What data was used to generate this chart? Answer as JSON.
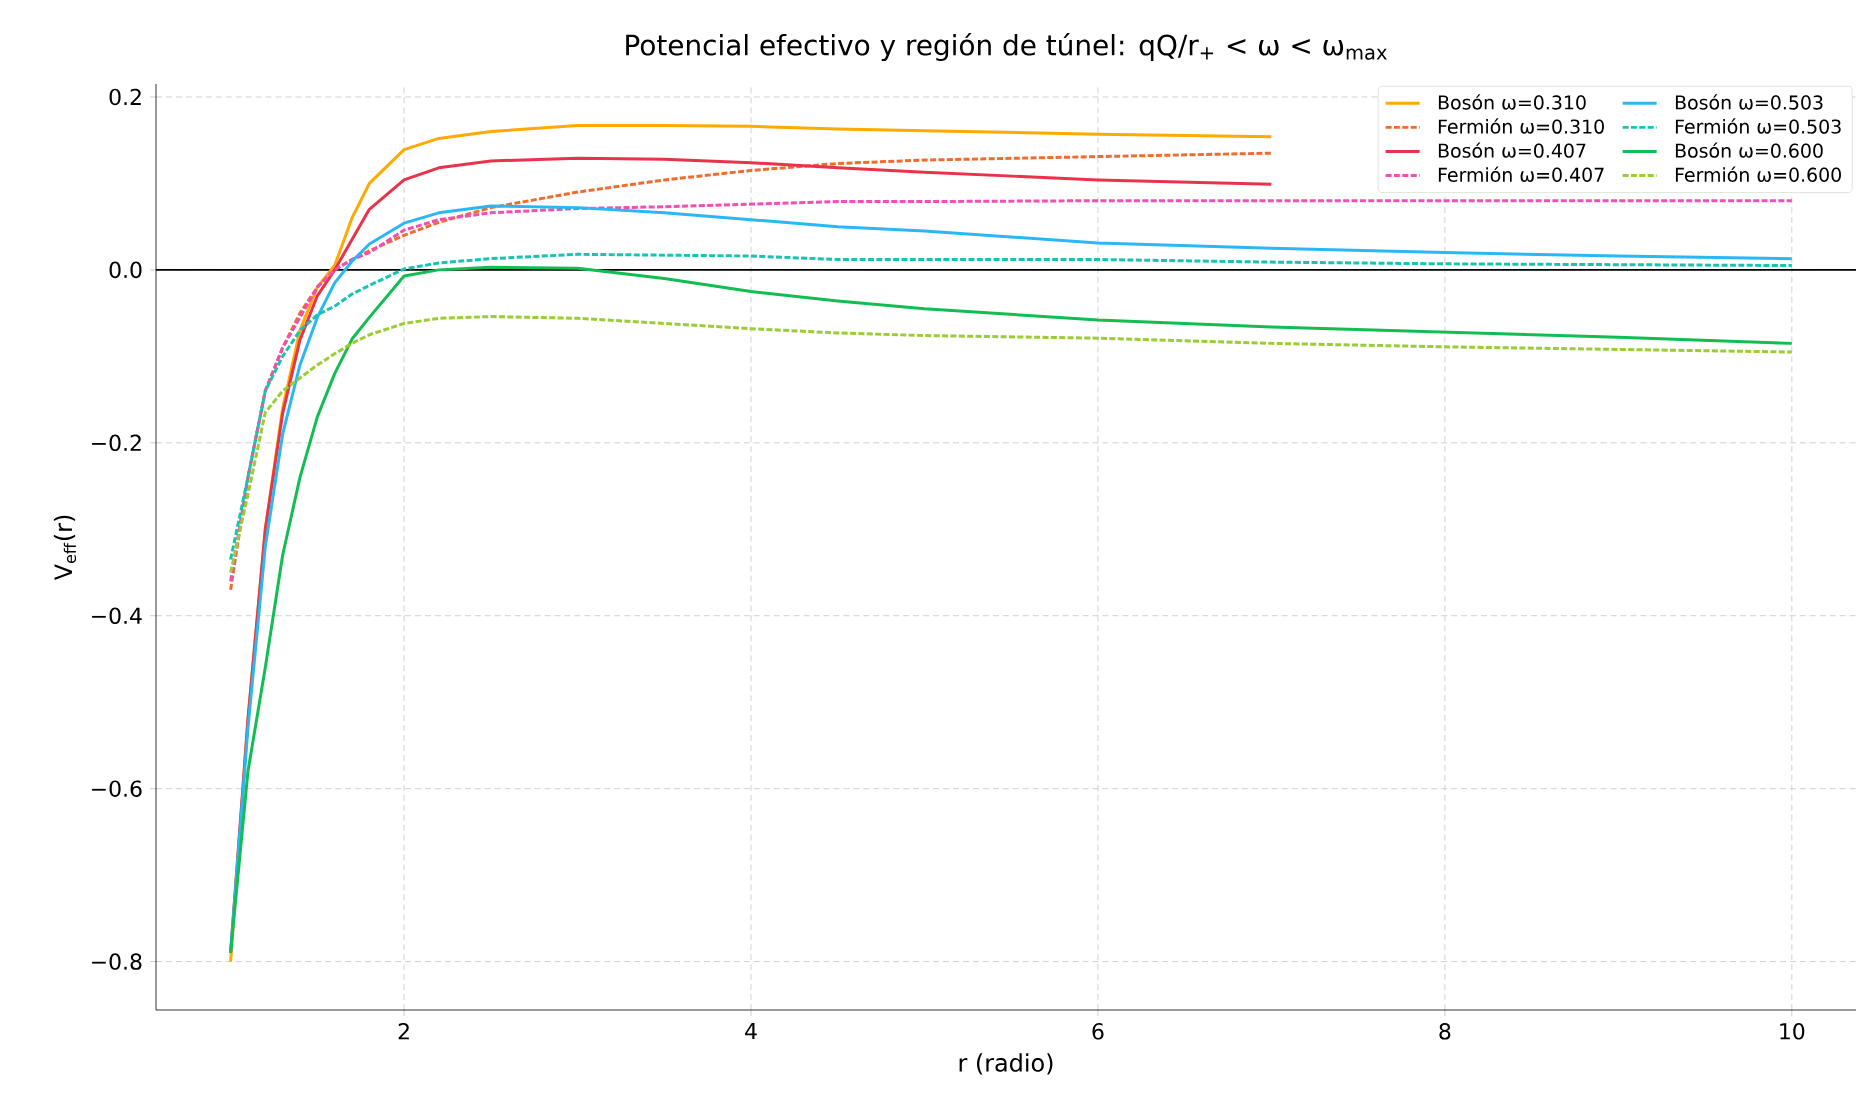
{
  "chart_data": {
    "type": "line",
    "title": "Potencial efectivo y región de túnel: qQ/r$_{+}$ < ω < ω$_{max}$",
    "xlabel": "r (radio)",
    "ylabel": "V$_{eff}$(r)",
    "x": [
      1,
      1.1,
      1.2,
      1.3,
      1.4,
      1.5,
      1.6,
      1.7,
      1.8,
      2,
      2.2,
      2.5,
      3,
      3.5,
      4,
      4.5,
      5,
      6,
      7,
      8,
      9,
      10
    ],
    "series": [
      {
        "name": "Bosón ω=0.310",
        "color": "#ffaa00",
        "line_style": "solid",
        "values": [
          -0.8,
          -0.52,
          -0.3,
          -0.16,
          -0.07,
          -0.02,
          0.005,
          0.06,
          0.1,
          0.139,
          0.152,
          0.16,
          0.167,
          0.167,
          0.166,
          0.163,
          0.161,
          0.157,
          0.154,
          null,
          null,
          null
        ]
      },
      {
        "name": "Fermión ω=0.310",
        "color": "#f26b2e",
        "line_style": "dashed",
        "values": [
          -0.37,
          -0.24,
          -0.14,
          -0.09,
          -0.05,
          -0.02,
          0.0,
          0.012,
          0.022,
          0.04,
          0.055,
          0.072,
          0.09,
          0.104,
          0.115,
          0.123,
          0.127,
          0.131,
          0.135,
          null,
          null,
          null
        ]
      },
      {
        "name": "Bosón ω=0.407",
        "color": "#e8334a",
        "line_style": "solid",
        "values": [
          -0.79,
          -0.52,
          -0.3,
          -0.166,
          -0.081,
          -0.03,
          0.0,
          0.035,
          0.07,
          0.104,
          0.118,
          0.126,
          0.129,
          0.128,
          0.124,
          0.118,
          0.113,
          0.104,
          0.099,
          null,
          null,
          null
        ]
      },
      {
        "name": "Fermión ω=0.407",
        "color": "#f04fb5",
        "line_style": "dashed",
        "values": [
          -0.36,
          -0.24,
          -0.14,
          -0.09,
          -0.055,
          -0.02,
          0.0,
          0.012,
          0.02,
          0.046,
          0.058,
          0.066,
          0.071,
          0.073,
          0.076,
          0.079,
          0.079,
          0.08,
          0.08,
          0.08,
          0.08,
          0.08
        ]
      },
      {
        "name": "Bosón ω=0.503",
        "color": "#2ab7f5",
        "line_style": "solid",
        "values": [
          -0.79,
          -0.53,
          -0.32,
          -0.19,
          -0.11,
          -0.055,
          -0.015,
          0.01,
          0.03,
          0.054,
          0.066,
          0.074,
          0.072,
          0.066,
          0.058,
          0.05,
          0.045,
          0.031,
          0.025,
          0.02,
          0.016,
          0.013
        ]
      },
      {
        "name": "Fermión ω=0.503",
        "color": "#17c3b2",
        "line_style": "dashed",
        "values": [
          -0.335,
          -0.24,
          -0.14,
          -0.1,
          -0.07,
          -0.052,
          -0.042,
          -0.028,
          -0.018,
          0.001,
          0.008,
          0.013,
          0.018,
          0.017,
          0.016,
          0.012,
          0.012,
          0.012,
          0.009,
          0.007,
          0.006,
          0.005
        ]
      },
      {
        "name": "Bosón ω=0.600",
        "color": "#12bd52",
        "line_style": "solid",
        "values": [
          -0.79,
          -0.58,
          -0.46,
          -0.33,
          -0.24,
          -0.17,
          -0.12,
          -0.08,
          -0.055,
          -0.007,
          0.0,
          0.003,
          0.002,
          -0.01,
          -0.025,
          -0.036,
          -0.045,
          -0.058,
          -0.066,
          -0.072,
          -0.078,
          -0.085
        ]
      },
      {
        "name": "Fermión ω=0.600",
        "color": "#9acd32",
        "line_style": "dashed",
        "values": [
          -0.35,
          -0.26,
          -0.165,
          -0.14,
          -0.125,
          -0.11,
          -0.097,
          -0.085,
          -0.075,
          -0.062,
          -0.056,
          -0.054,
          -0.056,
          -0.062,
          -0.068,
          -0.073,
          -0.076,
          -0.079,
          -0.085,
          -0.089,
          -0.092,
          -0.095
        ]
      }
    ],
    "xlim": [
      0.57,
      10.37
    ],
    "ylim": [
      -0.856,
      0.215
    ],
    "xticks": [
      2,
      4,
      6,
      8,
      10
    ],
    "yticks": [
      {
        "value": -0.8,
        "label": "−0.8"
      },
      {
        "value": -0.6,
        "label": "−0.6"
      },
      {
        "value": -0.4,
        "label": "−0.4"
      },
      {
        "value": -0.2,
        "label": "−0.2"
      },
      {
        "value": 0.0,
        "label": "0.0"
      },
      {
        "value": 0.2,
        "label": "0.2"
      }
    ],
    "ref_lines": [
      {
        "axis": "y",
        "value": 0,
        "color": "#000000",
        "line_style": "solid"
      }
    ],
    "grid": true,
    "legend": "top right"
  }
}
